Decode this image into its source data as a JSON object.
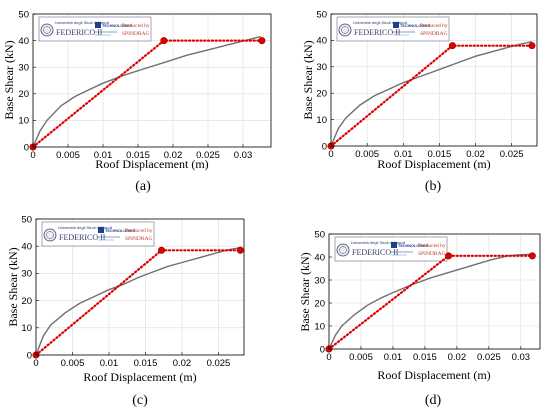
{
  "logo": {
    "university_small": "Università degli Studi di Napoli",
    "university_name": "FEDERICO II",
    "tech_name": "TECHNOLOGIES",
    "produced_by": "Produced by",
    "software": "SPINDRAG"
  },
  "chart_data": [
    {
      "type": "line",
      "panel_label": "(a)",
      "xlabel": "Roof Displacement (m)",
      "ylabel": "Base Shear (kN)",
      "xlim": [
        0,
        0.034
      ],
      "ylim": [
        0,
        50
      ],
      "xticks": [
        0,
        0.005,
        0.01,
        0.015,
        0.02,
        0.025,
        0.03
      ],
      "xtick_labels": [
        "0",
        "0.005",
        "0.01",
        "0.015",
        "0.02",
        "0.025",
        "0.03"
      ],
      "yticks": [
        0,
        10,
        20,
        30,
        40,
        50
      ],
      "ytick_labels": [
        "0",
        "10",
        "20",
        "30",
        "40",
        "50"
      ],
      "grid": true,
      "series": [
        {
          "color": "#707070",
          "style": "solid",
          "x": [
            0,
            0.001,
            0.002,
            0.004,
            0.006,
            0.008,
            0.01,
            0.013,
            0.016,
            0.019,
            0.022,
            0.025,
            0.028,
            0.031,
            0.0325
          ],
          "y": [
            0,
            6,
            10,
            15.5,
            19,
            21.5,
            24,
            27,
            29.5,
            32,
            34.5,
            36.5,
            38.5,
            40.5,
            41.5
          ]
        },
        {
          "color": "#e00000",
          "style": "dotted",
          "markers": true,
          "x": [
            0,
            0.0187,
            0.0327
          ],
          "y": [
            0,
            40,
            40
          ]
        }
      ]
    },
    {
      "type": "line",
      "panel_label": "(b)",
      "xlabel": "Roof Displacement (m)",
      "ylabel": "Base Shear (kN)",
      "xlim": [
        0,
        0.0285
      ],
      "ylim": [
        0,
        50
      ],
      "xticks": [
        0,
        0.005,
        0.01,
        0.015,
        0.02,
        0.025
      ],
      "xtick_labels": [
        "0",
        "0.005",
        "0.01",
        "0.015",
        "0.02",
        "0.025"
      ],
      "yticks": [
        0,
        10,
        20,
        30,
        40,
        50
      ],
      "ytick_labels": [
        "0",
        "10",
        "20",
        "30",
        "40",
        "50"
      ],
      "grid": true,
      "series": [
        {
          "color": "#707070",
          "style": "solid",
          "x": [
            0,
            0.001,
            0.002,
            0.004,
            0.006,
            0.008,
            0.01,
            0.012,
            0.014,
            0.016,
            0.018,
            0.02,
            0.022,
            0.024,
            0.026,
            0.0278
          ],
          "y": [
            0,
            6.5,
            10.5,
            15.5,
            19,
            21.5,
            24,
            26,
            28,
            30,
            32,
            34,
            35.5,
            37,
            38.5,
            39.5
          ]
        },
        {
          "color": "#e00000",
          "style": "dotted",
          "markers": true,
          "x": [
            0,
            0.0168,
            0.0278
          ],
          "y": [
            0,
            38,
            38
          ]
        }
      ]
    },
    {
      "type": "line",
      "panel_label": "(c)",
      "xlabel": "Roof Displacement (m)",
      "ylabel": "Base Shear (kN)",
      "xlim": [
        0,
        0.0285
      ],
      "ylim": [
        0,
        50
      ],
      "xticks": [
        0,
        0.005,
        0.01,
        0.015,
        0.02,
        0.025
      ],
      "xtick_labels": [
        "0",
        "0.005",
        "0.01",
        "0.015",
        "0.02",
        "0.025"
      ],
      "yticks": [
        0,
        10,
        20,
        30,
        40,
        50
      ],
      "ytick_labels": [
        "0",
        "10",
        "20",
        "30",
        "40",
        "50"
      ],
      "grid": true,
      "series": [
        {
          "color": "#707070",
          "style": "solid",
          "x": [
            0,
            0.001,
            0.002,
            0.004,
            0.006,
            0.008,
            0.01,
            0.012,
            0.014,
            0.016,
            0.018,
            0.02,
            0.022,
            0.024,
            0.026,
            0.028
          ],
          "y": [
            0,
            7,
            11,
            15.5,
            19,
            21.5,
            24,
            26,
            28.5,
            30.5,
            32.5,
            34,
            35.5,
            37,
            38.5,
            39.5
          ]
        },
        {
          "color": "#e00000",
          "style": "dotted",
          "markers": true,
          "x": [
            0,
            0.0172,
            0.028
          ],
          "y": [
            0,
            38.5,
            38.5
          ]
        }
      ]
    },
    {
      "type": "line",
      "panel_label": "(d)",
      "xlabel": "Roof Displacement (m)",
      "ylabel": "Base Shear (kN)",
      "xlim": [
        0,
        0.033
      ],
      "ylim": [
        0,
        50
      ],
      "xticks": [
        0,
        0.005,
        0.01,
        0.015,
        0.02,
        0.025,
        0.03
      ],
      "xtick_labels": [
        "0",
        "0.005",
        "0.01",
        "0.015",
        "0.02",
        "0.025",
        "0.03"
      ],
      "yticks": [
        0,
        10,
        20,
        30,
        40,
        50
      ],
      "ytick_labels": [
        "0",
        "10",
        "20",
        "30",
        "40",
        "50"
      ],
      "grid": true,
      "series": [
        {
          "color": "#707070",
          "style": "solid",
          "x": [
            0,
            0.001,
            0.002,
            0.004,
            0.006,
            0.008,
            0.01,
            0.013,
            0.016,
            0.019,
            0.022,
            0.025,
            0.028,
            0.03,
            0.032
          ],
          "y": [
            0,
            6,
            10,
            15,
            19,
            22,
            24.5,
            28,
            31,
            33.5,
            36,
            38.5,
            40.5,
            41,
            41.2
          ]
        },
        {
          "color": "#e00000",
          "style": "dotted",
          "markers": true,
          "x": [
            0,
            0.0187,
            0.0318
          ],
          "y": [
            0,
            40.5,
            40.5
          ]
        }
      ]
    }
  ]
}
